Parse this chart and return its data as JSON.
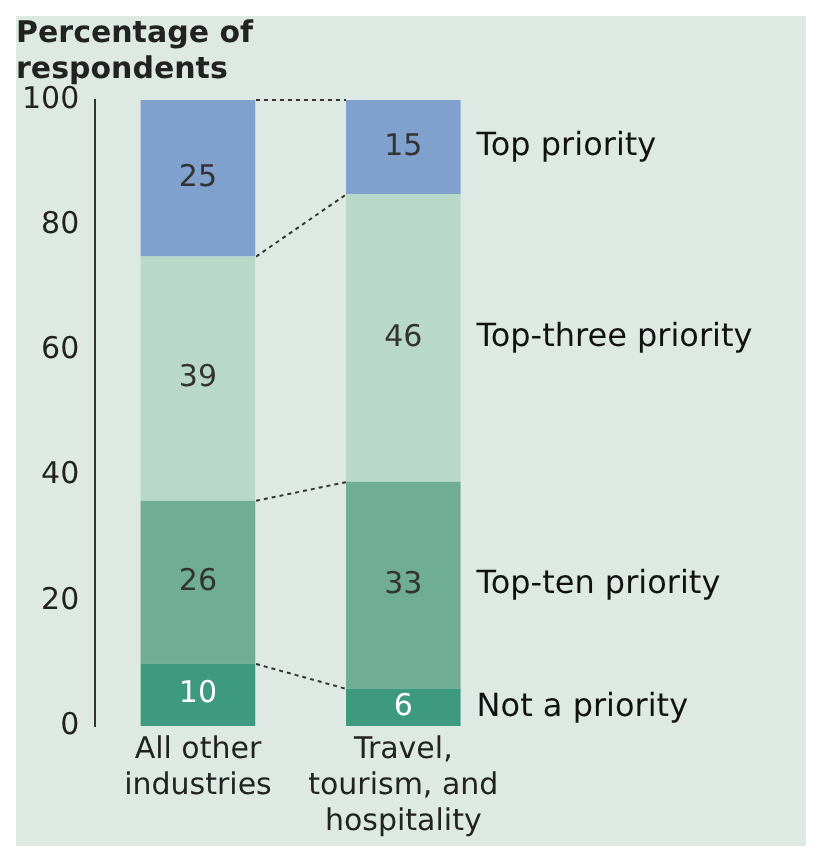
{
  "chart_data": {
    "type": "bar",
    "stacked": true,
    "ylabel": "Percentage of respondents",
    "categories": [
      "All other industries",
      "Travel, tourism, and hospitality"
    ],
    "series": [
      {
        "name": "Not a priority",
        "color": "#3d9a7f",
        "values": [
          10,
          6
        ]
      },
      {
        "name": "Top-ten priority",
        "color": "#70ad95",
        "values": [
          26,
          33
        ]
      },
      {
        "name": "Top-three priority",
        "color": "#b8d8ca",
        "values": [
          39,
          46
        ]
      },
      {
        "name": "Top priority",
        "color": "#80a0cd",
        "values": [
          25,
          15
        ]
      }
    ],
    "ylim": [
      0,
      100
    ],
    "yticks": [
      0,
      20,
      40,
      60,
      80,
      100
    ],
    "grid": false,
    "legend": "right",
    "data_labels": true
  }
}
